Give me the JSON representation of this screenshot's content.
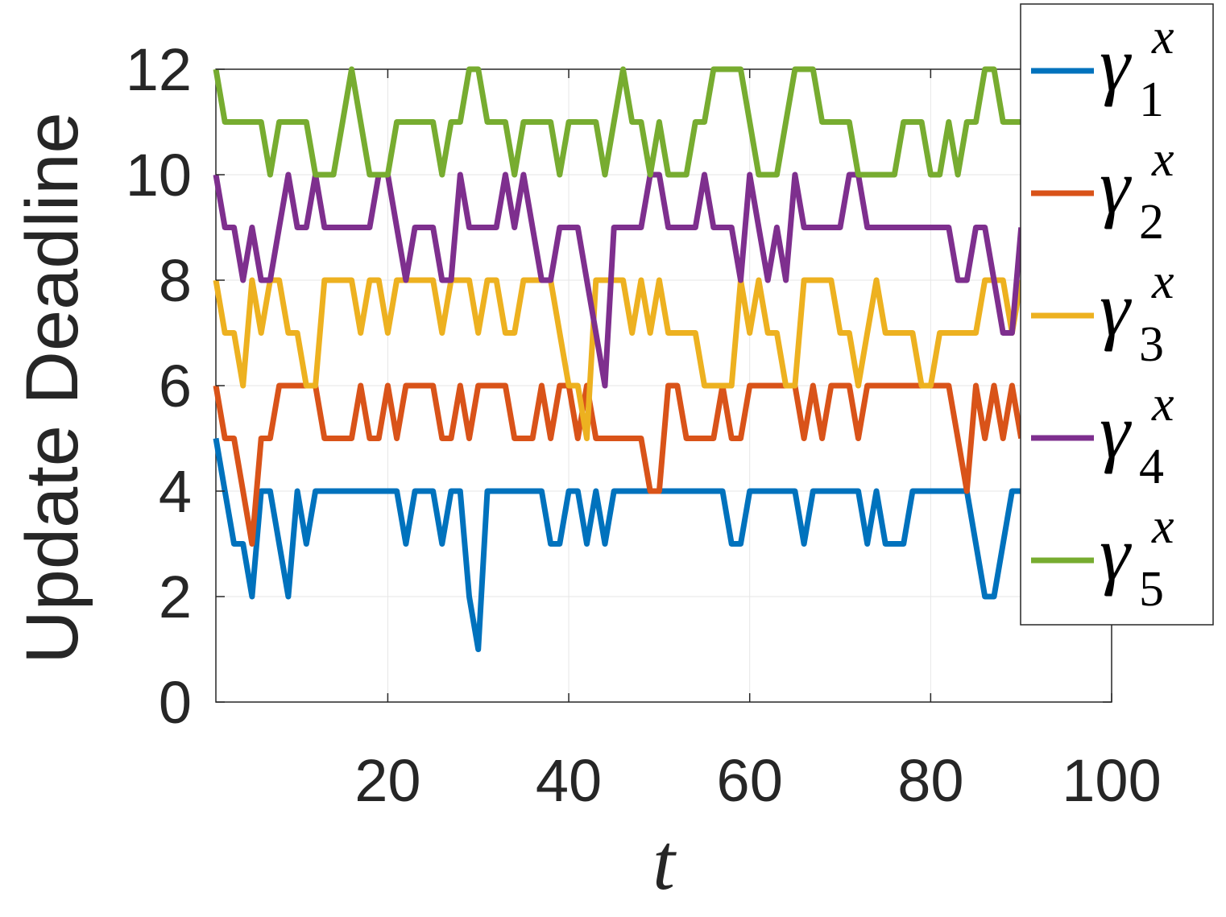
{
  "chart_data": {
    "type": "line",
    "xlabel": "t",
    "ylabel": "Update Deadline",
    "xlim": [
      0,
      100
    ],
    "ylim": [
      0,
      12
    ],
    "xticks": [
      20,
      40,
      60,
      80,
      100
    ],
    "yticks": [
      0,
      2,
      4,
      6,
      8,
      10,
      12
    ],
    "grid": true,
    "legend_position": "top-right (outside plot area)",
    "x": [
      1,
      2,
      3,
      4,
      5,
      6,
      7,
      8,
      9,
      10,
      11,
      12,
      13,
      14,
      15,
      16,
      17,
      18,
      19,
      20,
      21,
      22,
      23,
      24,
      25,
      26,
      27,
      28,
      29,
      30,
      31,
      32,
      33,
      34,
      35,
      36,
      37,
      38,
      39,
      40,
      41,
      42,
      43,
      44,
      45,
      46,
      47,
      48,
      49,
      50,
      51,
      52,
      53,
      54,
      55,
      56,
      57,
      58,
      59,
      60,
      61,
      62,
      63,
      64,
      65,
      66,
      67,
      68,
      69,
      70,
      71,
      72,
      73,
      74,
      75,
      76,
      77,
      78,
      79,
      80,
      81,
      82,
      83,
      84,
      85,
      86,
      87,
      88,
      89,
      90
    ],
    "series": [
      {
        "name": "γ",
        "sup": "x",
        "sub": "1",
        "color": "#0072BD",
        "values": [
          5,
          4,
          3,
          3,
          2,
          4,
          4,
          3,
          2,
          4,
          3,
          4,
          4,
          4,
          4,
          4,
          4,
          4,
          4,
          4,
          4,
          3,
          4,
          4,
          4,
          3,
          4,
          4,
          2,
          1,
          4,
          4,
          4,
          4,
          4,
          4,
          4,
          3,
          3,
          4,
          4,
          3,
          4,
          3,
          4,
          4,
          4,
          4,
          4,
          4,
          4,
          4,
          4,
          4,
          4,
          4,
          4,
          3,
          3,
          4,
          4,
          4,
          4,
          4,
          4,
          3,
          4,
          4,
          4,
          4,
          4,
          4,
          3,
          4,
          3,
          3,
          3,
          4,
          4,
          4,
          4,
          4,
          4,
          4,
          3,
          2,
          2,
          3,
          4,
          4
        ]
      },
      {
        "name": "γ",
        "sup": "x",
        "sub": "2",
        "color": "#D95319",
        "values": [
          6,
          5,
          5,
          4,
          3,
          5,
          5,
          6,
          6,
          6,
          6,
          6,
          5,
          5,
          5,
          5,
          6,
          5,
          5,
          6,
          5,
          6,
          6,
          6,
          6,
          5,
          5,
          6,
          5,
          6,
          6,
          6,
          6,
          5,
          5,
          5,
          6,
          5,
          6,
          6,
          5,
          6,
          5,
          5,
          5,
          5,
          5,
          5,
          4,
          4,
          6,
          6,
          5,
          5,
          5,
          5,
          6,
          5,
          5,
          6,
          6,
          6,
          6,
          6,
          6,
          5,
          6,
          5,
          6,
          6,
          6,
          5,
          6,
          6,
          6,
          6,
          6,
          6,
          6,
          6,
          6,
          6,
          5,
          4,
          6,
          5,
          6,
          5,
          6,
          5
        ]
      },
      {
        "name": "γ",
        "sup": "x",
        "sub": "3",
        "color": "#EDB120",
        "values": [
          8,
          7,
          7,
          6,
          8,
          7,
          8,
          8,
          7,
          7,
          6,
          6,
          8,
          8,
          8,
          8,
          7,
          8,
          8,
          7,
          8,
          8,
          8,
          8,
          8,
          7,
          8,
          8,
          8,
          7,
          8,
          8,
          7,
          7,
          8,
          8,
          8,
          8,
          7,
          6,
          6,
          5,
          8,
          8,
          8,
          8,
          7,
          8,
          7,
          8,
          7,
          7,
          7,
          7,
          6,
          6,
          6,
          6,
          8,
          7,
          8,
          7,
          7,
          6,
          6,
          8,
          8,
          8,
          8,
          7,
          7,
          6,
          7,
          8,
          7,
          7,
          7,
          7,
          6,
          6,
          7,
          7,
          7,
          7,
          7,
          8,
          8,
          8,
          7,
          8
        ]
      },
      {
        "name": "γ",
        "sup": "x",
        "sub": "4",
        "color": "#7E2F8E",
        "values": [
          10,
          9,
          9,
          8,
          9,
          8,
          8,
          9,
          10,
          9,
          9,
          10,
          9,
          9,
          9,
          9,
          9,
          9,
          10,
          10,
          9,
          8,
          9,
          9,
          9,
          8,
          8,
          10,
          9,
          9,
          9,
          9,
          10,
          9,
          10,
          9,
          8,
          8,
          9,
          9,
          9,
          8,
          7,
          6,
          9,
          9,
          9,
          9,
          10,
          10,
          9,
          9,
          9,
          9,
          10,
          9,
          9,
          9,
          8,
          10,
          9,
          8,
          9,
          8,
          10,
          9,
          9,
          9,
          9,
          9,
          10,
          10,
          9,
          9,
          9,
          9,
          9,
          9,
          9,
          9,
          9,
          9,
          8,
          8,
          9,
          9,
          8,
          7,
          7,
          9
        ]
      },
      {
        "name": "γ",
        "sup": "x",
        "sub": "5",
        "color": "#77AC30",
        "values": [
          12,
          11,
          11,
          11,
          11,
          11,
          10,
          11,
          11,
          11,
          11,
          10,
          10,
          10,
          11,
          12,
          11,
          10,
          10,
          10,
          11,
          11,
          11,
          11,
          11,
          10,
          11,
          11,
          12,
          12,
          11,
          11,
          11,
          10,
          11,
          11,
          11,
          11,
          10,
          11,
          11,
          11,
          11,
          10,
          11,
          12,
          11,
          11,
          10,
          11,
          10,
          10,
          10,
          11,
          11,
          12,
          12,
          12,
          12,
          11,
          10,
          10,
          10,
          11,
          12,
          12,
          12,
          11,
          11,
          11,
          11,
          10,
          10,
          10,
          10,
          10,
          11,
          11,
          11,
          10,
          10,
          11,
          10,
          11,
          11,
          12,
          12,
          11,
          11,
          11
        ]
      }
    ]
  }
}
